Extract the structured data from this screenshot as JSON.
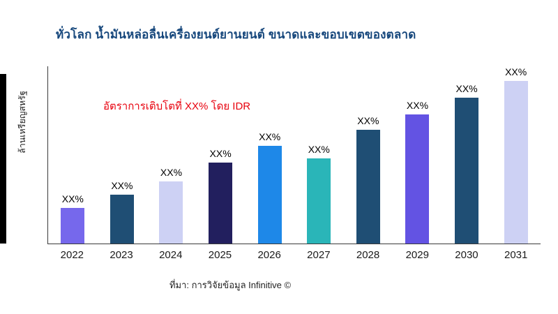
{
  "header": {
    "title": "ทั่วโลก น้ำมันหล่อลื่นเครื่องยนต์ยานยนต์ ขนาดและขอบเขตของตลาด",
    "title_color": "#16477c"
  },
  "accent": {
    "left_bar_color": "#000000"
  },
  "chart_data": {
    "type": "bar",
    "categories": [
      "2022",
      "2023",
      "2024",
      "2025",
      "2026",
      "2027",
      "2028",
      "2029",
      "2030",
      "2031"
    ],
    "values": [
      50,
      69,
      88,
      114,
      138,
      120,
      160,
      182,
      206,
      230
    ],
    "bar_labels": [
      "XX%",
      "XX%",
      "XX%",
      "XX%",
      "XX%",
      "XX%",
      "XX%",
      "XX%",
      "XX%",
      "XX%"
    ],
    "bar_colors": [
      "#7668ec",
      "#1f4e74",
      "#cdd1f4",
      "#221f5e",
      "#1e88e8",
      "#2ab5b8",
      "#1f4e74",
      "#6353e3",
      "#1f4e74",
      "#cdd1f4"
    ],
    "title": "",
    "xlabel": "",
    "ylabel": "ล้านเหรียญสหรัฐ",
    "ylim": [
      0,
      250
    ],
    "grid": false,
    "legend": false,
    "annotation": {
      "text": "อัตราการเติบโตที่ XX% โดย IDR",
      "color": "#e8000d"
    }
  },
  "footer": {
    "source": "ที่มา: การวิจัยข้อมูล Infinitive ©"
  }
}
